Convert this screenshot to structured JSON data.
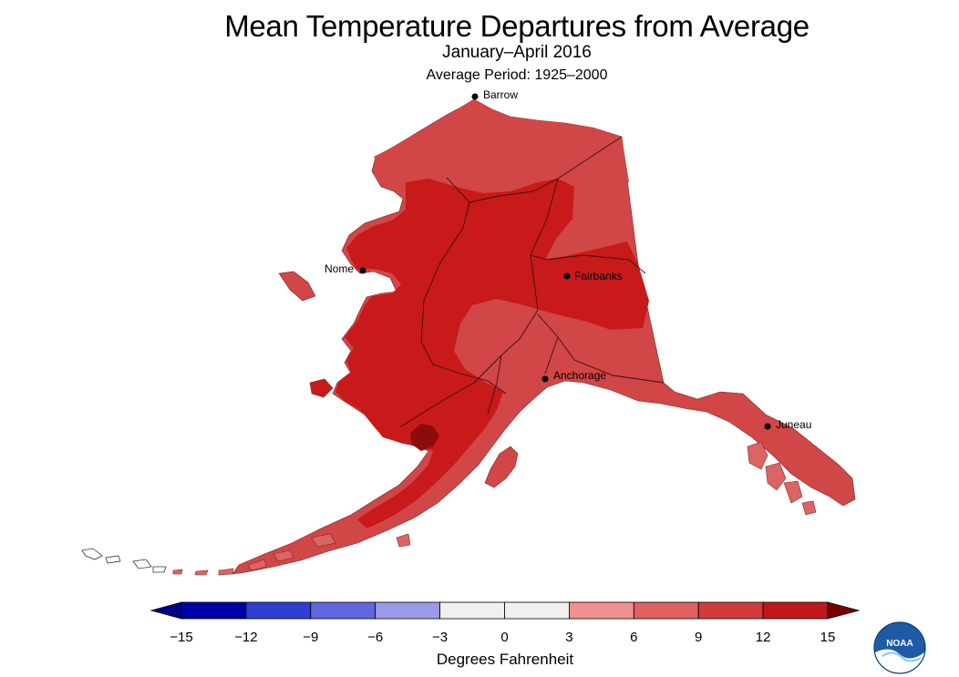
{
  "title": "Mean Temperature Departures from Average",
  "subtitle": "January–April 2016",
  "period": "Average Period: 1925–2000",
  "cities": [
    {
      "name": "Barrow"
    },
    {
      "name": "Nome"
    },
    {
      "name": "Fairbanks"
    },
    {
      "name": "Anchorage"
    },
    {
      "name": "Juneau"
    }
  ],
  "legend": {
    "unit": "Degrees Fahrenheit",
    "ticks": [
      "−15",
      "−12",
      "−9",
      "−6",
      "−3",
      "0",
      "3",
      "6",
      "9",
      "12",
      "15"
    ],
    "colors": [
      "#0000a8",
      "#2f3fd0",
      "#6166dc",
      "#9a9ae8",
      "#f0f0f0",
      "#f0f0f0",
      "#f09090",
      "#e06060",
      "#d03c3c",
      "#c01818"
    ],
    "under_color": "#00008b",
    "over_color": "#7a0000",
    "map_colors": {
      "plus6_9": "#dd6464",
      "plus9_12": "#d14646",
      "plus12_15": "#c81a1a",
      "over15": "#8c0c0c"
    }
  },
  "logo": "NOAA"
}
